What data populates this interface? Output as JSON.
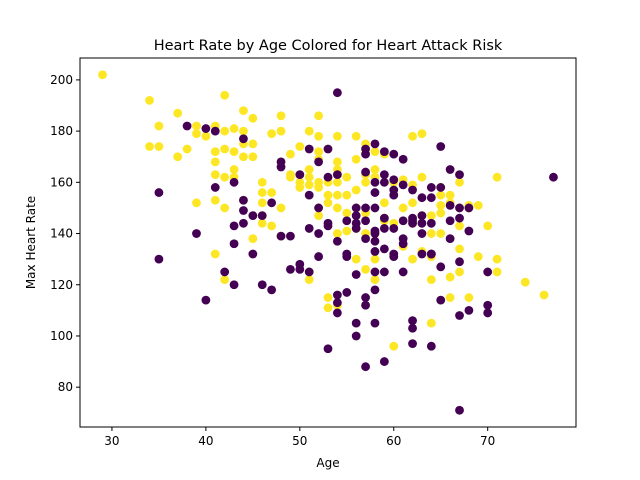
{
  "chart_data": {
    "type": "scatter",
    "title": "Heart Rate by Age Colored for Heart Attack Risk",
    "xlabel": "Age",
    "ylabel": "Max Heart Rate",
    "xlim": [
      26.6,
      79.4
    ],
    "ylim": [
      64.45,
      208.55
    ],
    "xticks": [
      30,
      40,
      50,
      60,
      70
    ],
    "yticks": [
      80,
      100,
      120,
      140,
      160,
      180,
      200
    ],
    "grid": false,
    "legend": "none",
    "colors": {
      "yes": "#fde725",
      "no": "#440154"
    },
    "series": [
      {
        "color": "#fde725",
        "points": [
          [
            29,
            202
          ],
          [
            34,
            192
          ],
          [
            34,
            174
          ],
          [
            35,
            182
          ],
          [
            35,
            174
          ],
          [
            37,
            187
          ],
          [
            37,
            170
          ],
          [
            38,
            173
          ],
          [
            39,
            152
          ],
          [
            39,
            182
          ],
          [
            39,
            179
          ],
          [
            40,
            178
          ],
          [
            41,
            182
          ],
          [
            41,
            172
          ],
          [
            41,
            168
          ],
          [
            41,
            163
          ],
          [
            41,
            153
          ],
          [
            41,
            132
          ],
          [
            42,
            194
          ],
          [
            42,
            180
          ],
          [
            42,
            173
          ],
          [
            42,
            162
          ],
          [
            42,
            150
          ],
          [
            42,
            122
          ],
          [
            43,
            181
          ],
          [
            43,
            172
          ],
          [
            43,
            165
          ],
          [
            43,
            162
          ],
          [
            44,
            188
          ],
          [
            44,
            180
          ],
          [
            44,
            175
          ],
          [
            44,
            170
          ],
          [
            44,
            153
          ],
          [
            45,
            185
          ],
          [
            45,
            175
          ],
          [
            45,
            170
          ],
          [
            45,
            138
          ],
          [
            46,
            160
          ],
          [
            46,
            156
          ],
          [
            46,
            152
          ],
          [
            46,
            147
          ],
          [
            46,
            144
          ],
          [
            47,
            179
          ],
          [
            47,
            156
          ],
          [
            47,
            143
          ],
          [
            48,
            186
          ],
          [
            48,
            180
          ],
          [
            48,
            168
          ],
          [
            48,
            150
          ],
          [
            48,
            139
          ],
          [
            49,
            171
          ],
          [
            49,
            163
          ],
          [
            49,
            162
          ],
          [
            50,
            174
          ],
          [
            50,
            163
          ],
          [
            50,
            160
          ],
          [
            50,
            158
          ],
          [
            51,
            180
          ],
          [
            51,
            165
          ],
          [
            51,
            162
          ],
          [
            51,
            159
          ],
          [
            51,
            125
          ],
          [
            51,
            122
          ],
          [
            52,
            186
          ],
          [
            52,
            178
          ],
          [
            52,
            172
          ],
          [
            52,
            169
          ],
          [
            52,
            160
          ],
          [
            52,
            158
          ],
          [
            52,
            150
          ],
          [
            52,
            147
          ],
          [
            53,
            160
          ],
          [
            53,
            155
          ],
          [
            53,
            152
          ],
          [
            53,
            115
          ],
          [
            53,
            111
          ],
          [
            54,
            178
          ],
          [
            54,
            168
          ],
          [
            54,
            165
          ],
          [
            54,
            163
          ],
          [
            54,
            160
          ],
          [
            54,
            155
          ],
          [
            54,
            150
          ],
          [
            54,
            140
          ],
          [
            54,
            112
          ],
          [
            55,
            155
          ],
          [
            55,
            148
          ],
          [
            55,
            162
          ],
          [
            55,
            141
          ],
          [
            56,
            178
          ],
          [
            56,
            169
          ],
          [
            56,
            157
          ],
          [
            56,
            150
          ],
          [
            56,
            142
          ],
          [
            56,
            130
          ],
          [
            57,
            175
          ],
          [
            57,
            173
          ],
          [
            57,
            163
          ],
          [
            57,
            160
          ],
          [
            57,
            148
          ],
          [
            57,
            140
          ],
          [
            57,
            126
          ],
          [
            58,
            172
          ],
          [
            58,
            165
          ],
          [
            58,
            162
          ],
          [
            58,
            140
          ],
          [
            58,
            130
          ],
          [
            58,
            122
          ],
          [
            59,
            171
          ],
          [
            59,
            152
          ],
          [
            59,
            146
          ],
          [
            59,
            145
          ],
          [
            60,
            160
          ],
          [
            60,
            157
          ],
          [
            60,
            144
          ],
          [
            60,
            96
          ],
          [
            61,
            161
          ],
          [
            61,
            150
          ],
          [
            61,
            135
          ],
          [
            62,
            178
          ],
          [
            62,
            159
          ],
          [
            62,
            152
          ],
          [
            62,
            144
          ],
          [
            62,
            130
          ],
          [
            63,
            179
          ],
          [
            63,
            162
          ],
          [
            63,
            147
          ],
          [
            63,
            133
          ],
          [
            64,
            147
          ],
          [
            64,
            140
          ],
          [
            64,
            131
          ],
          [
            64,
            122
          ],
          [
            64,
            105
          ],
          [
            65,
            158
          ],
          [
            65,
            155
          ],
          [
            65,
            151
          ],
          [
            65,
            140
          ],
          [
            65,
            148
          ],
          [
            66,
            155
          ],
          [
            66,
            152
          ],
          [
            66,
            123
          ],
          [
            66,
            115
          ],
          [
            67,
            160
          ],
          [
            67,
            150
          ],
          [
            67,
            143
          ],
          [
            67,
            134
          ],
          [
            67,
            125
          ],
          [
            68,
            150
          ],
          [
            68,
            151
          ],
          [
            68,
            115
          ],
          [
            69,
            151
          ],
          [
            69,
            131
          ],
          [
            70,
            143
          ],
          [
            71,
            162
          ],
          [
            71,
            130
          ],
          [
            71,
            125
          ],
          [
            74,
            121
          ],
          [
            76,
            116
          ]
        ]
      },
      {
        "color": "#440154",
        "points": [
          [
            35,
            156
          ],
          [
            35,
            130
          ],
          [
            38,
            182
          ],
          [
            39,
            140
          ],
          [
            40,
            181
          ],
          [
            40,
            114
          ],
          [
            41,
            180
          ],
          [
            41,
            158
          ],
          [
            42,
            125
          ],
          [
            43,
            143
          ],
          [
            43,
            136
          ],
          [
            43,
            120
          ],
          [
            43,
            160
          ],
          [
            44,
            177
          ],
          [
            44,
            153
          ],
          [
            44,
            144
          ],
          [
            44,
            149
          ],
          [
            45,
            132
          ],
          [
            45,
            147
          ],
          [
            46,
            147
          ],
          [
            46,
            120
          ],
          [
            47,
            152
          ],
          [
            47,
            118
          ],
          [
            48,
            168
          ],
          [
            48,
            166
          ],
          [
            48,
            139
          ],
          [
            49,
            139
          ],
          [
            49,
            126
          ],
          [
            50,
            163
          ],
          [
            50,
            128
          ],
          [
            50,
            126
          ],
          [
            51,
            173
          ],
          [
            51,
            155
          ],
          [
            51,
            142
          ],
          [
            51,
            125
          ],
          [
            52,
            168
          ],
          [
            52,
            150
          ],
          [
            52,
            140
          ],
          [
            52,
            131
          ],
          [
            53,
            173
          ],
          [
            53,
            162
          ],
          [
            53,
            144
          ],
          [
            53,
            143
          ],
          [
            53,
            95
          ],
          [
            54,
            195
          ],
          [
            54,
            163
          ],
          [
            54,
            137
          ],
          [
            54,
            116
          ],
          [
            54,
            113
          ],
          [
            54,
            109
          ],
          [
            55,
            145
          ],
          [
            55,
            132
          ],
          [
            55,
            131
          ],
          [
            55,
            117
          ],
          [
            56,
            150
          ],
          [
            56,
            147
          ],
          [
            56,
            144
          ],
          [
            56,
            142
          ],
          [
            56,
            124
          ],
          [
            56,
            105
          ],
          [
            56,
            100
          ],
          [
            57,
            173
          ],
          [
            57,
            171
          ],
          [
            57,
            164
          ],
          [
            57,
            150
          ],
          [
            57,
            145
          ],
          [
            57,
            138
          ],
          [
            57,
            115
          ],
          [
            57,
            112
          ],
          [
            57,
            88
          ],
          [
            58,
            175
          ],
          [
            58,
            160
          ],
          [
            58,
            156
          ],
          [
            58,
            150
          ],
          [
            58,
            141
          ],
          [
            58,
            140
          ],
          [
            58,
            137
          ],
          [
            58,
            133
          ],
          [
            58,
            125
          ],
          [
            58,
            118
          ],
          [
            58,
            105
          ],
          [
            59,
            172
          ],
          [
            59,
            163
          ],
          [
            59,
            160
          ],
          [
            59,
            146
          ],
          [
            59,
            142
          ],
          [
            59,
            134
          ],
          [
            59,
            125
          ],
          [
            59,
            90
          ],
          [
            60,
            171
          ],
          [
            60,
            161
          ],
          [
            60,
            157
          ],
          [
            60,
            155
          ],
          [
            60,
            142
          ],
          [
            60,
            132
          ],
          [
            60,
            131
          ],
          [
            61,
            169
          ],
          [
            61,
            159
          ],
          [
            61,
            145
          ],
          [
            61,
            138
          ],
          [
            61,
            136
          ],
          [
            61,
            125
          ],
          [
            62,
            157
          ],
          [
            62,
            146
          ],
          [
            62,
            144
          ],
          [
            62,
            145
          ],
          [
            62,
            106
          ],
          [
            62,
            103
          ],
          [
            62,
            97
          ],
          [
            63,
            154
          ],
          [
            63,
            147
          ],
          [
            63,
            144
          ],
          [
            63,
            140
          ],
          [
            63,
            132
          ],
          [
            64,
            158
          ],
          [
            64,
            154
          ],
          [
            64,
            144
          ],
          [
            64,
            132
          ],
          [
            64,
            132
          ],
          [
            64,
            96
          ],
          [
            65,
            174
          ],
          [
            65,
            158
          ],
          [
            65,
            127
          ],
          [
            65,
            114
          ],
          [
            66,
            165
          ],
          [
            66,
            151
          ],
          [
            66,
            145
          ],
          [
            66,
            138
          ],
          [
            67,
            163
          ],
          [
            67,
            150
          ],
          [
            67,
            146
          ],
          [
            67,
            129
          ],
          [
            67,
            108
          ],
          [
            67,
            71
          ],
          [
            68,
            150
          ],
          [
            68,
            141
          ],
          [
            68,
            110
          ],
          [
            70,
            125
          ],
          [
            70,
            112
          ],
          [
            70,
            109
          ],
          [
            77,
            162
          ]
        ]
      }
    ]
  }
}
